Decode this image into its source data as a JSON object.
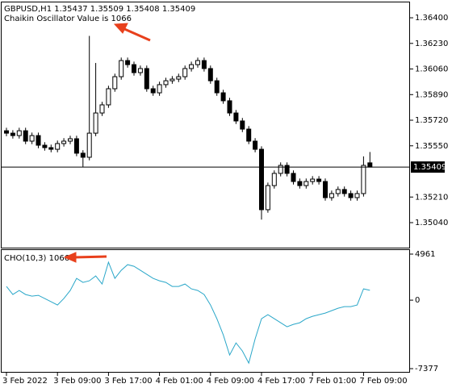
{
  "chart_data": [
    {
      "type": "candlestick",
      "title": "GBPUSD,H1  1.35437 1.35509 1.35408 1.35409",
      "annotation": "Chaikin Oscillator Value is 1066",
      "categories": [
        "3 Feb 2022",
        null,
        null,
        null,
        null,
        null,
        null,
        null,
        "3 Feb 09:00",
        null,
        null,
        null,
        null,
        null,
        null,
        null,
        "3 Feb 17:00",
        null,
        null,
        null,
        null,
        null,
        null,
        null,
        "4 Feb 01:00",
        null,
        null,
        null,
        null,
        null,
        null,
        null,
        "4 Feb 09:00",
        null,
        null,
        null,
        null,
        null,
        null,
        null,
        "4 Feb 17:00",
        null,
        null,
        null,
        null,
        null,
        null,
        null,
        "7 Feb 01:00",
        null,
        null,
        null,
        null,
        null,
        null,
        null,
        "7 Feb 09:00",
        null
      ],
      "open": [
        1.3565,
        1.35634,
        1.35618,
        1.3565,
        1.35581,
        1.35618,
        1.35554,
        1.35538,
        1.35527,
        1.35565,
        1.35581,
        1.35597,
        1.35501,
        1.35474,
        1.35634,
        1.35768,
        1.35822,
        1.35929,
        1.36009,
        1.36116,
        1.36089,
        1.36036,
        1.36063,
        1.35929,
        1.35902,
        1.35956,
        1.35982,
        1.35993,
        1.36009,
        1.36063,
        1.36089,
        1.36116,
        1.36063,
        1.35982,
        1.35902,
        1.35849,
        1.35768,
        1.35715,
        1.35661,
        1.35581,
        1.35527,
        1.35126,
        1.35286,
        1.35367,
        1.3542,
        1.35367,
        1.35313,
        1.35286,
        1.35313,
        1.35329,
        1.35313,
        1.35206,
        1.35233,
        1.3526,
        1.35233,
        1.35206,
        1.35233,
        1.35437
      ],
      "high": [
        1.3567,
        1.35654,
        1.3567,
        1.3567,
        1.35638,
        1.35638,
        1.35574,
        1.35558,
        1.35585,
        1.35601,
        1.35617,
        1.35617,
        1.35521,
        1.3628,
        1.361,
        1.35842,
        1.35949,
        1.36029,
        1.36136,
        1.36136,
        1.36109,
        1.36083,
        1.36083,
        1.35949,
        1.35976,
        1.36002,
        1.36013,
        1.36029,
        1.36083,
        1.36109,
        1.36136,
        1.36136,
        1.36083,
        1.36002,
        1.35922,
        1.35869,
        1.35788,
        1.35735,
        1.35681,
        1.35601,
        1.35547,
        1.35306,
        1.35387,
        1.3544,
        1.3544,
        1.35387,
        1.35333,
        1.35333,
        1.35349,
        1.35349,
        1.35333,
        1.35253,
        1.3528,
        1.3528,
        1.35253,
        1.35253,
        1.3548,
        1.35509
      ],
      "low": [
        1.35614,
        1.35598,
        1.35598,
        1.35561,
        1.35561,
        1.35534,
        1.35518,
        1.35507,
        1.35507,
        1.35545,
        1.35561,
        1.35481,
        1.3541,
        1.35454,
        1.35614,
        1.35748,
        1.35802,
        1.35909,
        1.35989,
        1.36069,
        1.36016,
        1.36016,
        1.35909,
        1.35882,
        1.35882,
        1.35936,
        1.35962,
        1.35973,
        1.35989,
        1.36043,
        1.36069,
        1.36043,
        1.35962,
        1.35882,
        1.35829,
        1.35748,
        1.35695,
        1.35641,
        1.35561,
        1.35507,
        1.3506,
        1.35106,
        1.35266,
        1.35347,
        1.35347,
        1.35293,
        1.35266,
        1.35266,
        1.35293,
        1.35293,
        1.35186,
        1.35186,
        1.35213,
        1.35213,
        1.35186,
        1.35186,
        1.35213,
        1.35408
      ],
      "close": [
        1.35634,
        1.35618,
        1.3565,
        1.35581,
        1.35618,
        1.35554,
        1.35538,
        1.35527,
        1.35565,
        1.35581,
        1.35597,
        1.35501,
        1.35474,
        1.35634,
        1.35768,
        1.35822,
        1.35929,
        1.36009,
        1.36116,
        1.36089,
        1.36036,
        1.36063,
        1.35929,
        1.35902,
        1.35956,
        1.35982,
        1.35993,
        1.36009,
        1.36063,
        1.36089,
        1.36116,
        1.36063,
        1.35982,
        1.35902,
        1.35849,
        1.35768,
        1.35715,
        1.35661,
        1.35581,
        1.35527,
        1.35126,
        1.35286,
        1.35367,
        1.3542,
        1.35367,
        1.35313,
        1.35286,
        1.35313,
        1.35329,
        1.35313,
        1.35206,
        1.35233,
        1.3526,
        1.35233,
        1.35206,
        1.35233,
        1.3542,
        1.35409
      ],
      "ylim": [
        1.34874,
        1.36502
      ],
      "yticks": [
        {
          "value": 1.364,
          "label": "1.36400"
        },
        {
          "value": 1.3623,
          "label": "1.36230"
        },
        {
          "value": 1.3606,
          "label": "1.36060"
        },
        {
          "value": 1.3589,
          "label": "1.35890"
        },
        {
          "value": 1.3572,
          "label": "1.35720"
        },
        {
          "value": 1.3555,
          "label": "1.35550"
        },
        {
          "value": 1.3521,
          "label": "1.35210"
        },
        {
          "value": 1.3504,
          "label": "1.35040"
        }
      ],
      "last_price": {
        "value": 1.35409,
        "label": "1.35409"
      },
      "up_color": "#ffffff",
      "down_color": "#000000"
    },
    {
      "type": "line",
      "title": "CHO(10,3) 1066",
      "values": [
        1477,
        608,
        1043,
        608,
        435,
        521,
        174,
        -174,
        -521,
        174,
        1043,
        2346,
        1912,
        2086,
        2607,
        1738,
        4084,
        2346,
        3215,
        3824,
        3650,
        3215,
        2781,
        2346,
        2086,
        1912,
        1477,
        1477,
        1738,
        1217,
        1043,
        608,
        -521,
        -1999,
        -3737,
        -5909,
        -4606,
        -5475,
        -6778,
        -4171,
        -1999,
        -1564,
        -1999,
        -2433,
        -2868,
        -2607,
        -2433,
        -1999,
        -1738,
        -1564,
        -1390,
        -1130,
        -869,
        -695,
        -695,
        -521,
        1217,
        1066
      ],
      "color": "#2aa7c9",
      "ylim": [
        -7812,
        5396
      ],
      "yticks": [
        4961,
        0,
        -7377
      ]
    }
  ]
}
